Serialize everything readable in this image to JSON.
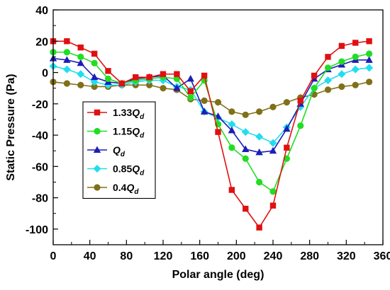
{
  "chart_data": {
    "type": "line",
    "xlabel": "Polar angle (deg)",
    "ylabel": "Static Pressure (Pa)",
    "xlim": [
      0,
      360
    ],
    "ylim": [
      -110,
      40
    ],
    "xticks": [
      0,
      40,
      80,
      120,
      160,
      200,
      240,
      280,
      320,
      360
    ],
    "yticks": [
      40,
      20,
      0,
      -20,
      -40,
      -60,
      -80,
      -100
    ],
    "grid": false,
    "legend_position": "left-middle",
    "x": [
      0,
      15,
      30,
      45,
      60,
      75,
      90,
      105,
      120,
      135,
      150,
      165,
      180,
      195,
      210,
      225,
      240,
      255,
      270,
      285,
      300,
      315,
      330,
      345
    ],
    "series": [
      {
        "name": "1.33Qd",
        "label_main": "1.33",
        "label_italic": "Q",
        "label_sub": "d",
        "color": "#e01010",
        "marker": "square",
        "values": [
          20,
          20,
          16,
          12,
          1,
          -7,
          -3,
          -3,
          -1,
          -1,
          -12,
          -2,
          -38,
          -75,
          -87,
          -99,
          -85,
          -48,
          -18,
          -2,
          10,
          17,
          19,
          20
        ]
      },
      {
        "name": "1.15Qd",
        "label_main": "1.15",
        "label_italic": "Q",
        "label_sub": "d",
        "color": "#22dd22",
        "marker": "circle",
        "values": [
          13,
          13,
          10,
          6,
          -4,
          -7,
          -5,
          -4,
          -3,
          -4,
          -16,
          -5,
          -33,
          -48,
          -55,
          -70,
          -76,
          -55,
          -34,
          -10,
          3,
          7,
          10,
          12
        ]
      },
      {
        "name": "Qd",
        "label_main": "",
        "label_italic": "Q",
        "label_sub": "d",
        "color": "#1d1db8",
        "marker": "triangle",
        "values": [
          9,
          8,
          6,
          -3,
          -6,
          -7,
          -4,
          -3,
          -2,
          -10,
          -4,
          -25,
          -28,
          -37,
          -49,
          -51,
          -50,
          -36,
          -20,
          -4,
          2,
          5,
          8,
          8
        ]
      },
      {
        "name": "0.85Qd",
        "label_main": "0.85",
        "label_italic": "Q",
        "label_sub": "d",
        "color": "#22ddf0",
        "marker": "diamond",
        "values": [
          4,
          2,
          -1,
          -6,
          -8,
          -8,
          -6,
          -5,
          -5,
          -9,
          -11,
          -25,
          -29,
          -33,
          -38,
          -41,
          -45,
          -35,
          -22,
          -10,
          -5,
          -1,
          2,
          3
        ]
      },
      {
        "name": "0.4Qd",
        "label_main": "0.4",
        "label_italic": "Q",
        "label_sub": "d",
        "color": "#807018",
        "marker": "circle",
        "values": [
          -6,
          -7,
          -8,
          -9,
          -9,
          -8,
          -8,
          -8,
          -10,
          -11,
          -17,
          -18,
          -19,
          -25,
          -27,
          -25,
          -22,
          -19,
          -16,
          -14,
          -11,
          -9,
          -8,
          -6
        ]
      }
    ]
  }
}
